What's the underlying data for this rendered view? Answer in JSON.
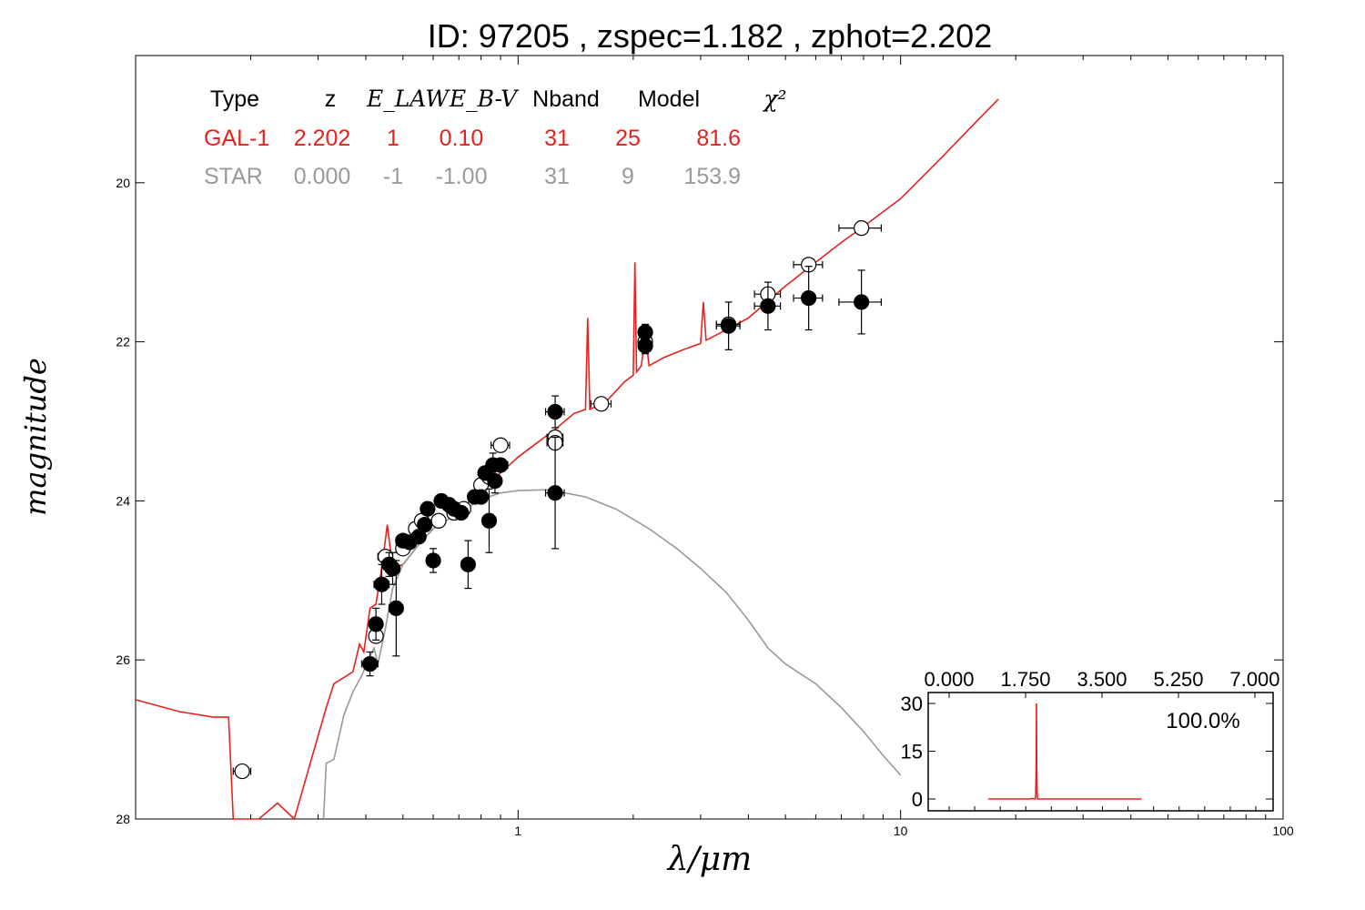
{
  "chart_data": [
    {
      "type": "scatter",
      "title": "ID:  97205 , zspec=1.182 , zphot=2.202",
      "xlabel": "λ/μm",
      "ylabel": "magnitude",
      "x_scale": "log",
      "xlim": [
        0.1,
        100
      ],
      "ylim": [
        28.0,
        18.4
      ],
      "x_tick_labels": [
        "1",
        "10",
        "100"
      ],
      "x_tick_values": [
        1,
        10,
        100
      ],
      "y_tick_labels": [
        "20",
        "22",
        "24",
        "26",
        "28"
      ],
      "y_tick_values": [
        20,
        22,
        24,
        26,
        28
      ],
      "fit_table": {
        "header": [
          "Type",
          "z",
          "E_LAW",
          "E_B-V",
          "Nband",
          "Model",
          "χ²"
        ],
        "rows": [
          {
            "type": "GAL-1",
            "z": "2.202",
            "e_law": "1",
            "ebv": "0.10",
            "nband": "31",
            "model": "25",
            "chi2": "81.6",
            "color": "#e3231f"
          },
          {
            "type": "STAR",
            "z": "0.000",
            "e_law": "-1",
            "ebv": "-1.00",
            "nband": "31",
            "model": "9",
            "chi2": "153.9",
            "color": "#9a9a9a"
          }
        ]
      },
      "series": [
        {
          "name": "GAL-1",
          "kind": "line",
          "color": "#e3231f",
          "points": [
            [
              0.1,
              26.5
            ],
            [
              0.13,
              26.65
            ],
            [
              0.16,
              26.72
            ],
            [
              0.175,
              26.72
            ],
            [
              0.178,
              27.5
            ],
            [
              0.18,
              28.0
            ],
            [
              0.21,
              28.0
            ],
            [
              0.235,
              27.8
            ],
            [
              0.26,
              28.0
            ],
            [
              0.29,
              27.2
            ],
            [
              0.315,
              26.6
            ],
            [
              0.33,
              26.3
            ],
            [
              0.37,
              26.15
            ],
            [
              0.385,
              25.8
            ],
            [
              0.395,
              25.9
            ],
            [
              0.41,
              25.35
            ],
            [
              0.425,
              25.3
            ],
            [
              0.44,
              24.85
            ],
            [
              0.455,
              24.3
            ],
            [
              0.47,
              24.85
            ],
            [
              0.5,
              24.8
            ],
            [
              0.55,
              24.55
            ],
            [
              0.6,
              24.35
            ],
            [
              0.7,
              24.15
            ],
            [
              0.8,
              23.85
            ],
            [
              0.9,
              23.65
            ],
            [
              1.0,
              23.45
            ],
            [
              1.1,
              23.3
            ],
            [
              1.25,
              23.1
            ],
            [
              1.4,
              22.9
            ],
            [
              1.5,
              22.85
            ],
            [
              1.52,
              21.7
            ],
            [
              1.54,
              22.85
            ],
            [
              1.7,
              22.75
            ],
            [
              1.9,
              22.5
            ],
            [
              2.0,
              22.42
            ],
            [
              2.02,
              21.0
            ],
            [
              2.04,
              22.38
            ],
            [
              2.1,
              22.3
            ],
            [
              2.15,
              21.9
            ],
            [
              2.2,
              22.3
            ],
            [
              2.4,
              22.2
            ],
            [
              2.7,
              22.1
            ],
            [
              3.0,
              22.02
            ],
            [
              3.05,
              21.5
            ],
            [
              3.1,
              21.98
            ],
            [
              3.5,
              21.85
            ],
            [
              4.0,
              21.7
            ],
            [
              5.0,
              21.3
            ],
            [
              6.0,
              21.0
            ],
            [
              7.0,
              20.75
            ],
            [
              8.0,
              20.55
            ],
            [
              10.0,
              20.2
            ],
            [
              13.0,
              19.65
            ],
            [
              16.0,
              19.2
            ],
            [
              18.0,
              18.95
            ]
          ]
        },
        {
          "name": "STAR",
          "kind": "line",
          "color": "#999999",
          "points": [
            [
              0.31,
              28.0
            ],
            [
              0.315,
              27.3
            ],
            [
              0.33,
              27.25
            ],
            [
              0.35,
              26.7
            ],
            [
              0.37,
              26.4
            ],
            [
              0.39,
              26.2
            ],
            [
              0.41,
              25.95
            ],
            [
              0.42,
              25.85
            ],
            [
              0.43,
              26.05
            ],
            [
              0.45,
              25.6
            ],
            [
              0.47,
              25.1
            ],
            [
              0.5,
              24.8
            ],
            [
              0.55,
              24.55
            ],
            [
              0.6,
              24.35
            ],
            [
              0.7,
              24.15
            ],
            [
              0.8,
              23.98
            ],
            [
              0.9,
              23.9
            ],
            [
              1.0,
              23.87
            ],
            [
              1.2,
              23.86
            ],
            [
              1.5,
              23.95
            ],
            [
              1.8,
              24.1
            ],
            [
              2.2,
              24.35
            ],
            [
              2.6,
              24.6
            ],
            [
              3.0,
              24.85
            ],
            [
              3.5,
              25.15
            ],
            [
              4.0,
              25.5
            ],
            [
              4.5,
              25.85
            ],
            [
              5.0,
              26.05
            ],
            [
              6.0,
              26.3
            ],
            [
              7.0,
              26.6
            ],
            [
              8.0,
              26.9
            ],
            [
              9.0,
              27.2
            ],
            [
              10.0,
              27.45
            ]
          ]
        },
        {
          "name": "observed (filled)",
          "kind": "errorbar",
          "fill": "#000000",
          "points": [
            [
              0.41,
              26.05,
              0.15,
              0.02
            ],
            [
              0.425,
              25.55,
              0.2,
              0.015
            ],
            [
              0.44,
              25.05,
              0.25,
              0.02
            ],
            [
              0.46,
              24.8,
              0.15,
              0.02
            ],
            [
              0.47,
              24.85,
              0.2,
              0.02
            ],
            [
              0.48,
              25.35,
              0.6,
              0.02
            ],
            [
              0.5,
              24.5,
              0.08,
              0.02
            ],
            [
              0.52,
              24.52,
              0.06,
              0.02
            ],
            [
              0.55,
              24.45,
              0.08,
              0.02
            ],
            [
              0.57,
              24.3,
              0.08,
              0.02
            ],
            [
              0.58,
              24.1,
              0.06,
              0.02
            ],
            [
              0.6,
              24.75,
              0.15,
              0.02
            ],
            [
              0.63,
              24.0,
              0.05,
              0.02
            ],
            [
              0.66,
              24.05,
              0.05,
              0.02
            ],
            [
              0.68,
              24.1,
              0.05,
              0.02
            ],
            [
              0.71,
              24.15,
              0.06,
              0.02
            ],
            [
              0.74,
              24.8,
              0.3,
              0.02
            ],
            [
              0.77,
              23.95,
              0.05,
              0.02
            ],
            [
              0.8,
              23.95,
              0.08,
              0.02
            ],
            [
              0.82,
              23.65,
              0.08,
              0.02
            ],
            [
              0.84,
              24.25,
              0.4,
              0.02
            ],
            [
              0.86,
              23.55,
              0.15,
              0.02
            ],
            [
              0.87,
              23.75,
              0.15,
              0.02
            ],
            [
              0.9,
              23.55,
              0.08,
              0.04
            ],
            [
              1.25,
              22.88,
              0.2,
              0.07
            ],
            [
              1.25,
              23.9,
              0.7,
              0.07
            ],
            [
              2.15,
              21.88,
              0.1,
              0.08
            ],
            [
              2.15,
              22.05,
              0.1,
              0.08
            ],
            [
              3.55,
              21.8,
              0.3,
              0.25
            ],
            [
              4.5,
              21.55,
              0.3,
              0.35
            ],
            [
              5.75,
              21.45,
              0.4,
              0.5
            ],
            [
              7.9,
              21.5,
              0.4,
              1.0
            ]
          ]
        },
        {
          "name": "model (open)",
          "kind": "errorbar",
          "fill": "#ffffff",
          "points": [
            [
              0.19,
              27.4,
              0.0,
              0.01
            ],
            [
              0.425,
              25.7,
              0.0,
              0.01
            ],
            [
              0.45,
              24.7,
              0.0,
              0.02
            ],
            [
              0.5,
              24.6,
              0.0,
              0.02
            ],
            [
              0.54,
              24.35,
              0.0,
              0.02
            ],
            [
              0.56,
              24.25,
              0.0,
              0.02
            ],
            [
              0.62,
              24.25,
              0.0,
              0.02
            ],
            [
              0.68,
              24.15,
              0.0,
              0.02
            ],
            [
              0.72,
              24.1,
              0.0,
              0.02
            ],
            [
              0.8,
              23.8,
              0.0,
              0.02
            ],
            [
              0.84,
              23.7,
              0.0,
              0.02
            ],
            [
              0.9,
              23.3,
              0.0,
              0.05
            ],
            [
              1.25,
              23.2,
              0.0,
              0.06
            ],
            [
              1.25,
              23.27,
              0.0,
              0.06
            ],
            [
              1.65,
              22.78,
              0.0,
              0.1
            ],
            [
              2.15,
              22.0,
              0.0,
              0.08
            ],
            [
              3.55,
              21.78,
              0.0,
              0.25
            ],
            [
              4.5,
              21.4,
              0.0,
              0.35
            ],
            [
              5.75,
              21.03,
              0.0,
              0.5
            ],
            [
              7.9,
              20.57,
              0.0,
              1.0
            ]
          ]
        }
      ]
    },
    {
      "type": "line",
      "title": "",
      "label": "100.0%",
      "x_tick_labels": [
        "0.000",
        "1.750",
        "3.500",
        "5.250",
        "7.000"
      ],
      "x_tick_values": [
        0.0,
        1.75,
        3.5,
        5.25,
        7.0
      ],
      "xlim": [
        0,
        7
      ],
      "y_tick_labels": [
        "30",
        "15",
        "0"
      ],
      "y_tick_values": [
        30,
        15,
        0
      ],
      "ylim": [
        -3,
        34
      ],
      "series": [
        {
          "name": "P(z)",
          "color": "#e3231f",
          "points": [
            [
              0.0,
              0
            ],
            [
              1.9,
              0
            ],
            [
              2.0,
              0.2
            ],
            [
              2.1,
              0
            ],
            [
              2.15,
              0
            ],
            [
              2.17,
              2
            ],
            [
              2.19,
              12
            ],
            [
              2.2,
              30
            ],
            [
              2.21,
              12
            ],
            [
              2.23,
              2
            ],
            [
              2.25,
              0
            ],
            [
              3.0,
              0
            ],
            [
              7.0,
              0
            ]
          ]
        }
      ]
    }
  ]
}
